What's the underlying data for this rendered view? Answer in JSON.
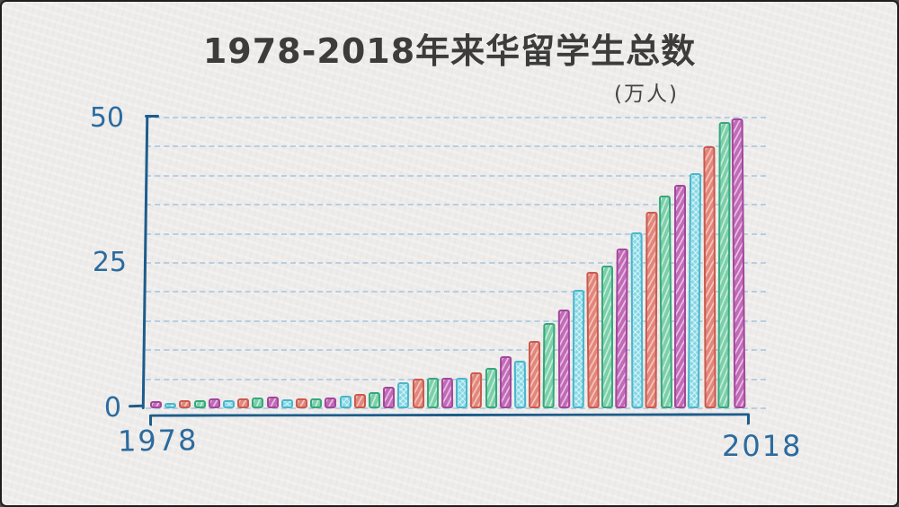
{
  "header": {
    "title": "1978-2018年来华留学生总数",
    "unit": "(万人)"
  },
  "axes": {
    "y": {
      "ticks": [
        {
          "value": 50,
          "label": "50"
        },
        {
          "value": 25,
          "label": "25"
        },
        {
          "value": 0,
          "label": "0"
        }
      ]
    },
    "x": {
      "start_label": "1978",
      "end_label": "2018"
    }
  },
  "palette": {
    "cycle": [
      "purple",
      "cyan",
      "red",
      "green"
    ],
    "purple": {
      "fill": "#c26ab8",
      "outline": "#a2489b"
    },
    "cyan": {
      "fill": "#86d8e5",
      "outline": "#49b6cb"
    },
    "red": {
      "fill": "#e4867a",
      "outline": "#c95b4f"
    },
    "green": {
      "fill": "#7bd0a9",
      "outline": "#37a77e"
    },
    "axis_color": "#1d5c8c",
    "tick_label_color": "#2c6b9e",
    "gridline_color": "#b2cbe3",
    "title_color": "#3c3c3c",
    "background": "#edecea"
  },
  "chart_data": {
    "type": "bar",
    "title": "1978-2018年来华留学生总数",
    "subtitle": "(万人)",
    "xlabel": "",
    "ylabel": "万人",
    "ylim": [
      0,
      50
    ],
    "gridline_step": 5,
    "grid": "dashed",
    "legend": "none",
    "x": [
      1978,
      1979,
      1980,
      1981,
      1982,
      1983,
      1984,
      1985,
      1986,
      1987,
      1988,
      1989,
      1990,
      1991,
      1992,
      1993,
      1994,
      1995,
      1996,
      1997,
      1998,
      1999,
      2000,
      2001,
      2002,
      2003,
      2004,
      2005,
      2006,
      2007,
      2008,
      2009,
      2010,
      2011,
      2012,
      2013,
      2014,
      2015,
      2016,
      2017,
      2018
    ],
    "values": [
      1.2,
      0.9,
      1.4,
      1.4,
      1.7,
      1.4,
      1.7,
      1.8,
      2.0,
      1.5,
      1.7,
      1.7,
      1.8,
      2.2,
      2.5,
      2.8,
      3.7,
      4.5,
      5.1,
      5.2,
      5.3,
      5.3,
      6.2,
      7.0,
      9.0,
      8.2,
      11.5,
      14.6,
      17.0,
      20.3,
      23.4,
      24.6,
      27.4,
      30.3,
      33.8,
      36.5,
      38.5,
      40.5,
      45.0,
      49.3,
      49.9
    ]
  }
}
